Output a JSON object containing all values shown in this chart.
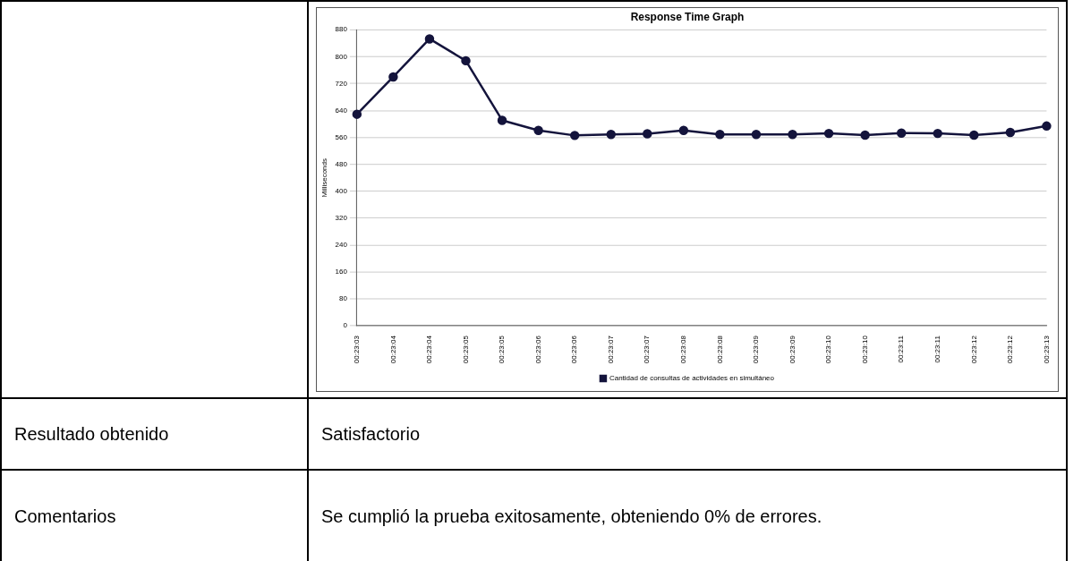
{
  "chart_data": {
    "type": "line",
    "title": "Response Time Graph",
    "ylabel": "Milliseconds",
    "categories": [
      "00:23:03",
      "00:23:04",
      "00:23:04",
      "00:23:05",
      "00:23:05",
      "00:23:06",
      "00:23:06",
      "00:23:07",
      "00:23:07",
      "00:23:08",
      "00:23:08",
      "00:23:09",
      "00:23:09",
      "00:23:10",
      "00:23:10",
      "00:23:11",
      "00:23:11",
      "00:23:12",
      "00:23:12",
      "00:23:13"
    ],
    "series": [
      {
        "name": "Cantidad de consultas de actividades en simultáneo",
        "color": "#14143c",
        "values": [
          629,
          740,
          853,
          788,
          611,
          581,
          566,
          569,
          571,
          581,
          569,
          569,
          569,
          572,
          567,
          573,
          572,
          567,
          575,
          594
        ]
      }
    ],
    "ylim": [
      0,
      880
    ],
    "yticks": [
      0,
      80,
      160,
      240,
      320,
      400,
      480,
      560,
      640,
      720,
      800,
      880
    ],
    "grid": "y",
    "legend": "bottom",
    "marker": "circle",
    "line_style": "solid",
    "annotations": [
      "Resultado obtenido",
      "Satisfactorio",
      "Comentarios",
      "Se cumplió la prueba exitosamente, obteniendo 0% de errores."
    ]
  }
}
